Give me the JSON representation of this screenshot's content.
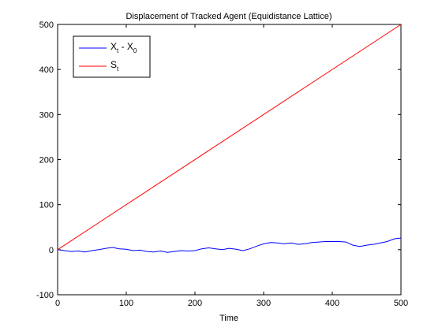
{
  "chart_data": {
    "type": "line",
    "title": "Displacement of Tracked Agent (Equidistance Lattice)",
    "xlabel": "Time",
    "ylabel": "",
    "xlim": [
      0,
      500
    ],
    "ylim": [
      -100,
      500
    ],
    "xticks": [
      0,
      100,
      200,
      300,
      400,
      500
    ],
    "yticks": [
      -100,
      0,
      100,
      200,
      300,
      400,
      500
    ],
    "grid": false,
    "legend_position": "top-left",
    "series": [
      {
        "name": "X_t - X_0",
        "legend_main": "X",
        "legend_sub": "t",
        "legend_rest": " - X",
        "legend_sub2": "0",
        "color": "#0000ff",
        "x": [
          0,
          10,
          20,
          30,
          40,
          50,
          60,
          70,
          80,
          90,
          100,
          110,
          120,
          130,
          140,
          150,
          160,
          170,
          180,
          190,
          200,
          210,
          220,
          230,
          240,
          250,
          260,
          270,
          280,
          290,
          300,
          310,
          320,
          330,
          340,
          350,
          360,
          370,
          380,
          390,
          400,
          410,
          420,
          430,
          440,
          450,
          460,
          470,
          480,
          490,
          500
        ],
        "y": [
          0,
          -2,
          -4,
          -3,
          -5,
          -2,
          0,
          3,
          5,
          2,
          1,
          -2,
          -1,
          -4,
          -5,
          -3,
          -6,
          -4,
          -2,
          -3,
          -2,
          2,
          4,
          2,
          0,
          3,
          1,
          -2,
          2,
          8,
          13,
          16,
          15,
          13,
          15,
          12,
          13,
          16,
          17,
          18,
          18,
          18,
          17,
          10,
          7,
          10,
          12,
          15,
          18,
          24,
          26
        ]
      },
      {
        "name": "S_t",
        "legend_main": "S",
        "legend_sub": "t",
        "color": "#ff0000",
        "x": [
          0,
          500
        ],
        "y": [
          0,
          500
        ]
      }
    ]
  }
}
